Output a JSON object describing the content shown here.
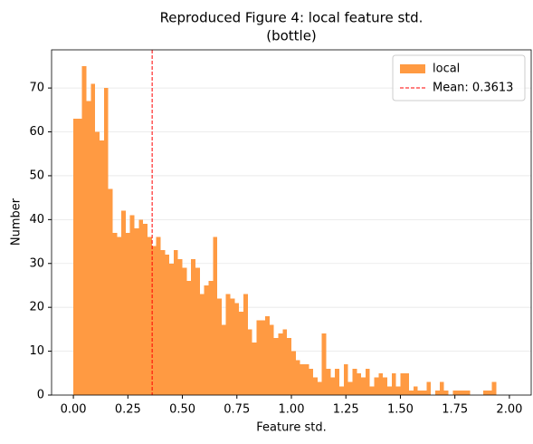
{
  "chart_data": {
    "type": "histogram",
    "title": "Reproduced Figure 4: local feature std.",
    "subtitle": "(bottle)",
    "x_label": "Feature std.",
    "y_label": "Number",
    "bins": [
      0,
      0.02,
      0.04,
      0.06,
      0.08,
      0.1,
      0.12,
      0.14,
      0.16,
      0.18,
      0.2,
      0.22,
      0.24,
      0.26,
      0.28,
      0.3,
      0.32,
      0.34,
      0.36,
      0.38,
      0.4,
      0.42,
      0.44,
      0.46,
      0.48,
      0.5,
      0.52,
      0.54,
      0.56,
      0.58,
      0.6,
      0.62,
      0.64,
      0.66,
      0.68,
      0.7,
      0.72,
      0.74,
      0.76,
      0.78,
      0.8,
      0.82,
      0.84,
      0.86,
      0.88,
      0.9,
      0.92,
      0.94,
      0.96,
      0.98,
      1,
      1.02,
      1.04,
      1.06,
      1.08,
      1.1,
      1.12,
      1.14,
      1.16,
      1.18,
      1.2,
      1.22,
      1.24,
      1.26,
      1.28,
      1.3,
      1.32,
      1.34,
      1.36,
      1.38,
      1.4,
      1.42,
      1.44,
      1.46,
      1.48,
      1.5,
      1.52,
      1.54,
      1.56,
      1.58,
      1.6,
      1.62,
      1.64,
      1.66,
      1.68,
      1.7,
      1.72,
      1.74,
      1.76,
      1.78,
      1.8,
      1.82,
      1.84,
      1.86,
      1.88,
      1.9,
      1.92,
      1.94
    ],
    "series": [
      {
        "name": "local",
        "color": "#ff9a42",
        "values": [
          63,
          63,
          75,
          67,
          71,
          60,
          58,
          70,
          47,
          37,
          36,
          42,
          37,
          41,
          38,
          40,
          39,
          36,
          34,
          36,
          33,
          32,
          30,
          33,
          31,
          29,
          26,
          31,
          29,
          23,
          25,
          26,
          36,
          22,
          16,
          23,
          22,
          21,
          19,
          23,
          15,
          12,
          17,
          17,
          18,
          16,
          13,
          14,
          15,
          13,
          10,
          8,
          7,
          7,
          6,
          4,
          3,
          14,
          6,
          4,
          6,
          2,
          7,
          3,
          6,
          5,
          4,
          6,
          2,
          4,
          5,
          4,
          2,
          5,
          2,
          5,
          5,
          1,
          2,
          1,
          1,
          3,
          0,
          1,
          3,
          1,
          0,
          1,
          1,
          1,
          1,
          0,
          0,
          0,
          1,
          1,
          3
        ]
      }
    ],
    "mean_line": {
      "value": 0.3613,
      "label": "Mean: 0.3613",
      "color": "#ff0000"
    },
    "xlim": [
      -0.1,
      2.1
    ],
    "ylim": [
      0,
      78.7
    ],
    "xticks": [
      {
        "value": 0,
        "label": "0.00"
      },
      {
        "value": 0.25,
        "label": "0.25"
      },
      {
        "value": 0.5,
        "label": "0.50"
      },
      {
        "value": 0.75,
        "label": "0.75"
      },
      {
        "value": 1,
        "label": "1.00"
      },
      {
        "value": 1.25,
        "label": "1.25"
      },
      {
        "value": 1.5,
        "label": "1.50"
      },
      {
        "value": 1.75,
        "label": "1.75"
      },
      {
        "value": 2,
        "label": "2.00"
      }
    ],
    "yticks": [
      0,
      10,
      20,
      30,
      40,
      50,
      60,
      70
    ],
    "grid": true,
    "legend": "upper right"
  }
}
